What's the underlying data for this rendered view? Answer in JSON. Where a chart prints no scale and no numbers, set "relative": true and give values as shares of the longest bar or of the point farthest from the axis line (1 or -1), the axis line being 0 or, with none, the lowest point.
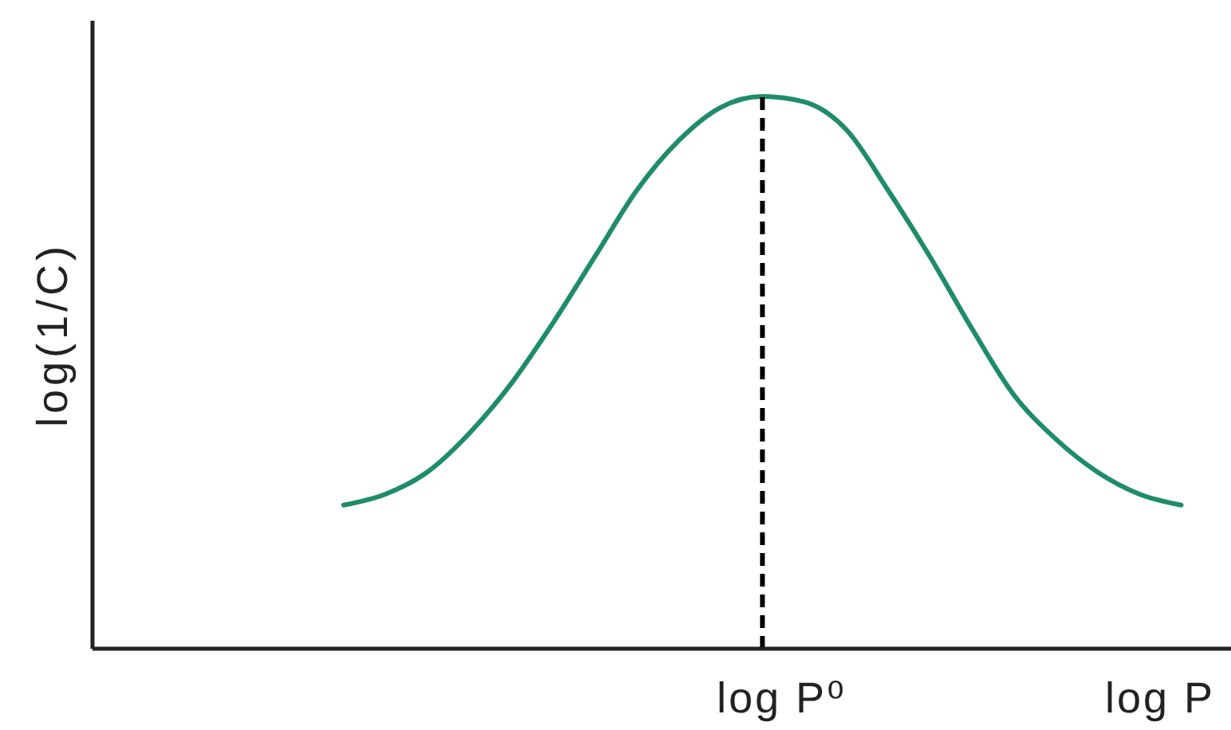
{
  "chart_data": {
    "type": "line",
    "relative": true,
    "ylabel": "log(1/C)",
    "xlabel": "log P",
    "categories": [
      null,
      null,
      null,
      null,
      null,
      null,
      null,
      null,
      null,
      null,
      null,
      null,
      null,
      null,
      null,
      null,
      null,
      null,
      null,
      null,
      null,
      null,
      null,
      null,
      null,
      null,
      null,
      null
    ],
    "series": [
      {
        "color": "#1e8c6b",
        "values": [
          null,
          null,
          null,
          null,
          null,
          null,
          0.26,
          0.28,
          0.32,
          0.39,
          0.48,
          0.59,
          0.71,
          0.83,
          0.92,
          0.98,
          1,
          0.99,
          0.94,
          0.83,
          0.71,
          0.58,
          0.46,
          0.38,
          0.32,
          0.28,
          0.26,
          null
        ]
      }
    ],
    "marker": "none",
    "line_style": "solid",
    "ref_lines": [
      {
        "axis": "x",
        "label": "log P⁰",
        "color": "#000000",
        "line_style": "dashed"
      }
    ]
  }
}
